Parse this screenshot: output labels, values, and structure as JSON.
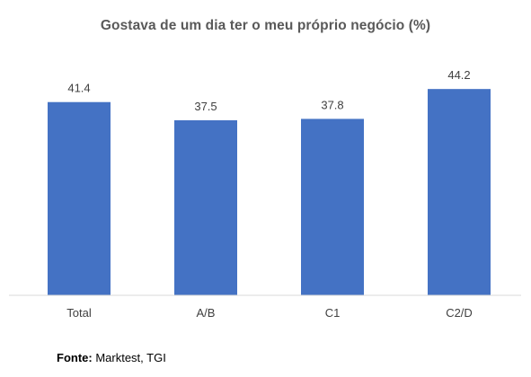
{
  "chart_data": {
    "type": "bar",
    "title": "Gostava de um dia ter o meu próprio negócio (%)",
    "categories": [
      "Total",
      "A/B",
      "C1",
      "C2/D"
    ],
    "values": [
      41.4,
      37.5,
      37.8,
      44.2
    ],
    "value_labels": [
      "41.4",
      "37.5",
      "37.8",
      "44.2"
    ],
    "xlabel": "",
    "ylabel": "",
    "ylim": [
      0,
      45
    ],
    "grid": false,
    "legend": "none",
    "bar_color": "#4472C4"
  },
  "source": {
    "label": "Fonte:",
    "text": " Marktest, TGI"
  }
}
